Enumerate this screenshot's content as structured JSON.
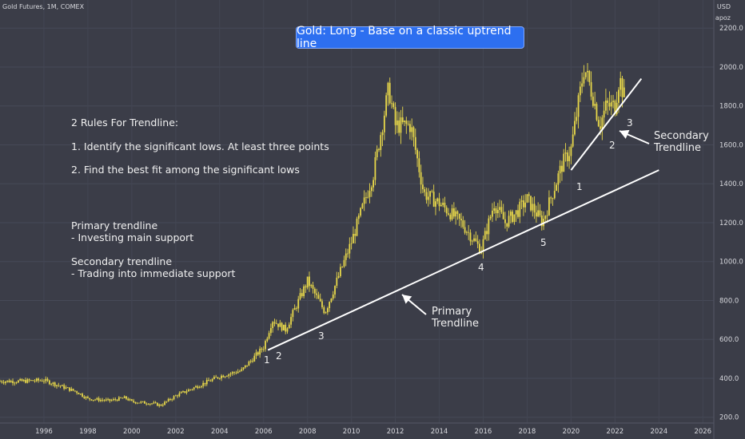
{
  "header": {
    "symbol": "Gold Futures, 1M, COMEX",
    "currency": "USD",
    "unit": "apoz"
  },
  "banner": "Gold: Long - Base on a classic uptrend line",
  "notes": {
    "rules_title": "2 Rules For Trendline:",
    "rule1": "1. Identify the significant lows. At least three points",
    "rule2": "2. Find the best fit among the significant lows",
    "primary_title": "Primary trendline",
    "primary_desc": "- Investing main support",
    "secondary_title": "Secondary trendline",
    "secondary_desc": "- Trading into immediate support"
  },
  "annotations": {
    "primary": "Primary\nTrendline",
    "secondary": "Secondary\nTrendline",
    "primary_points": [
      "1",
      "2",
      "3",
      "4",
      "5"
    ],
    "secondary_points": [
      "1",
      "2",
      "3"
    ]
  },
  "colors": {
    "background": "#3b3d48",
    "candles": "#e8d84a",
    "trendline": "#ffffff",
    "banner": "#2d6ff0",
    "text": "#d7d8dd"
  },
  "chart_data": {
    "type": "line",
    "title": "Gold: Long - Base on a classic uptrend line",
    "series": [
      {
        "x": [
          1994.0,
          1995.0,
          1996.0,
          1997.0,
          1997.5,
          1998.0,
          1999.0,
          1999.7,
          2000.0,
          2001.0,
          2001.3,
          2002.0,
          2003.0,
          2004.0,
          2005.0,
          2006.0,
          2006.4,
          2007.0,
          2008.0,
          2008.8,
          2009.5,
          2010.0,
          2011.0,
          2011.7,
          2012.0,
          2012.7,
          2013.3,
          2014.0,
          2015.0,
          2015.9,
          2016.5,
          2017.0,
          2017.5,
          2018.0,
          2018.7,
          2019.0,
          2019.6,
          2020.0,
          2020.6,
          2021.0,
          2021.3,
          2021.6,
          2022.0,
          2022.2,
          2022.4
        ],
        "y": [
          385,
          385,
          390,
          350,
          330,
          295,
          285,
          300,
          280,
          270,
          260,
          310,
          360,
          410,
          440,
          560,
          700,
          650,
          900,
          740,
          950,
          1100,
          1450,
          1890,
          1700,
          1700,
          1350,
          1300,
          1200,
          1060,
          1300,
          1200,
          1250,
          1320,
          1200,
          1300,
          1500,
          1580,
          2000,
          1850,
          1700,
          1800,
          1800,
          1950,
          1850
        ]
      }
    ],
    "trendlines": [
      {
        "name": "Primary Trendline",
        "points": [
          [
            2006.2,
            545
          ],
          [
            2024.0,
            1470
          ]
        ]
      },
      {
        "name": "Secondary Trendline",
        "points": [
          [
            2020.0,
            1470
          ],
          [
            2023.2,
            1940
          ]
        ]
      }
    ],
    "xlim": [
      1994.0,
      2026.5
    ],
    "ylim": [
      170,
      2250
    ],
    "x_ticks": [
      "1996",
      "1998",
      "2000",
      "2002",
      "2004",
      "2006",
      "2008",
      "2010",
      "2012",
      "2014",
      "2016",
      "2018",
      "2020",
      "2022",
      "2024",
      "2026"
    ],
    "y_ticks": [
      "2200.0",
      "2000.0",
      "1800.0",
      "1600.0",
      "1400.0",
      "1200.0",
      "1000.0",
      "800.0",
      "600.0",
      "400.0",
      "200.0"
    ],
    "grid": true,
    "legend": "none"
  }
}
